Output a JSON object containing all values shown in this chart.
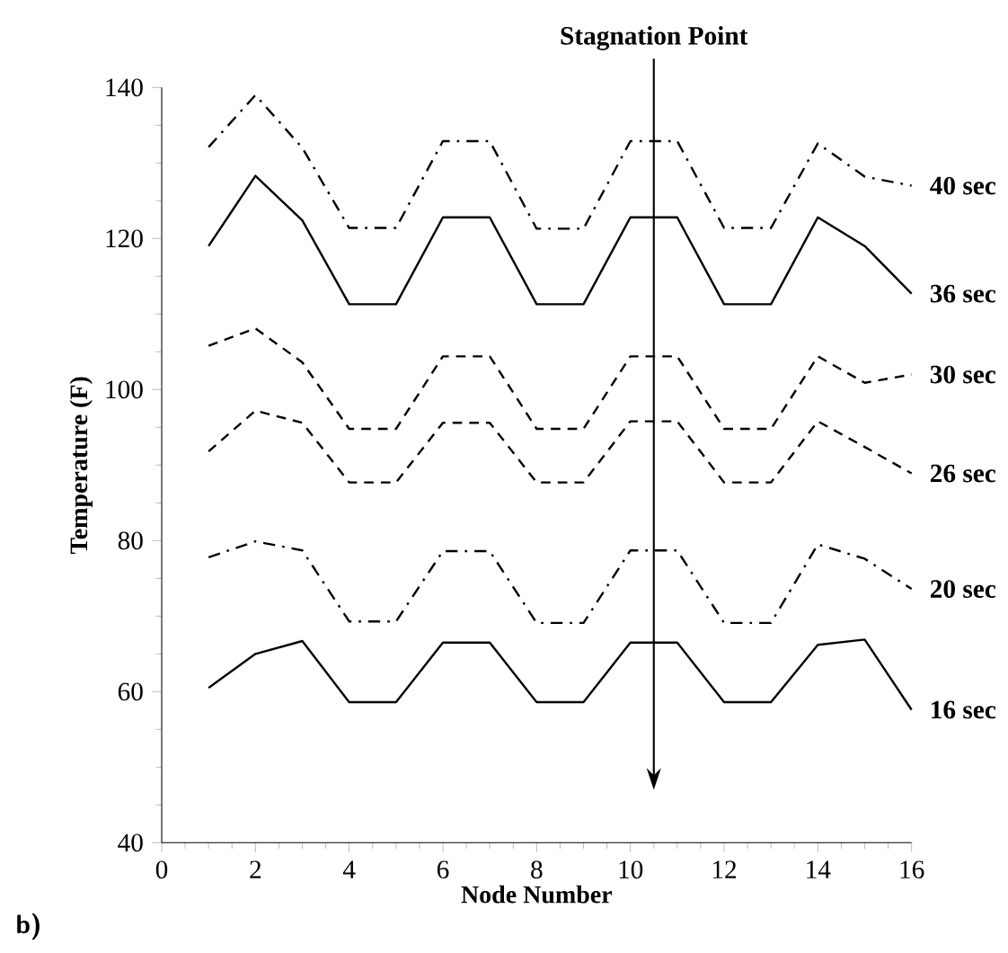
{
  "chart_data": {
    "type": "line",
    "xlabel": "Node Number",
    "ylabel": "Temperature (F)",
    "x": [
      1,
      2,
      3,
      4,
      5,
      6,
      7,
      8,
      9,
      10,
      11,
      12,
      13,
      14,
      15,
      16
    ],
    "xlim": [
      0,
      16
    ],
    "xticks": [
      0,
      2,
      4,
      6,
      8,
      10,
      12,
      14,
      16
    ],
    "ylim": [
      40,
      140
    ],
    "yticks": [
      40,
      60,
      80,
      100,
      120,
      140
    ],
    "grid": false,
    "legend": false,
    "marker": "none",
    "series": [
      {
        "name": "40 sec",
        "color": "#000000",
        "line_style": "dashdot",
        "values": [
          132.1,
          139,
          132,
          121.4,
          121.4,
          132.9,
          132.9,
          121.3,
          121.3,
          132.9,
          132.9,
          121.4,
          121.4,
          132.6,
          128.2,
          127
        ]
      },
      {
        "name": "36 sec",
        "color": "#000000",
        "line_style": "solid",
        "values": [
          119,
          128.3,
          122.4,
          111.3,
          111.3,
          122.8,
          122.8,
          111.3,
          111.3,
          122.8,
          122.8,
          111.3,
          111.3,
          122.8,
          119,
          112.7
        ]
      },
      {
        "name": "30 sec",
        "color": "#000000",
        "line_style": "dashed",
        "values": [
          105.8,
          108.1,
          103.6,
          94.8,
          94.8,
          104.4,
          104.4,
          94.8,
          94.8,
          104.4,
          104.4,
          94.8,
          94.8,
          104.4,
          100.9,
          102
        ]
      },
      {
        "name": "26 sec",
        "color": "#000000",
        "line_style": "dashed",
        "values": [
          91.8,
          97.2,
          95.6,
          87.7,
          87.7,
          95.6,
          95.6,
          87.7,
          87.7,
          95.8,
          95.8,
          87.7,
          87.7,
          95.8,
          92.4,
          88.9
        ]
      },
      {
        "name": "20 sec",
        "color": "#000000",
        "line_style": "dashdot",
        "values": [
          77.8,
          79.9,
          78.7,
          69.3,
          69.3,
          78.6,
          78.6,
          69.1,
          69.1,
          78.7,
          78.7,
          69.1,
          69.1,
          79.5,
          77.6,
          73.6
        ]
      },
      {
        "name": "16 sec",
        "color": "#000000",
        "line_style": "solid",
        "values": [
          60.5,
          65,
          66.7,
          58.6,
          58.6,
          66.5,
          66.5,
          58.6,
          58.6,
          66.5,
          66.5,
          58.6,
          58.6,
          66.2,
          66.9,
          57.6
        ]
      }
    ],
    "ref_lines": [
      {
        "axis": "x",
        "value": 10.5,
        "label": "Stagnation Point"
      }
    ],
    "annotations": [
      "b)"
    ]
  }
}
